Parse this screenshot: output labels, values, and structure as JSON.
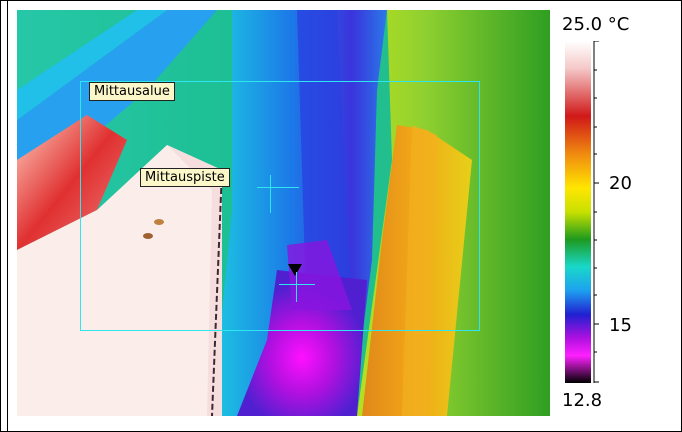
{
  "regions": {
    "area_label": "Mittausalue",
    "point_label": "Mittauspiste"
  },
  "scale": {
    "max_label": "25.0 °C",
    "min_label": "12.8",
    "tick_20": "20",
    "tick_15": "15",
    "max_value": 25.0,
    "min_value": 12.8,
    "unit": "°C",
    "palette": [
      "#ffffff",
      "#f7d0d0",
      "#d01818",
      "#f08a10",
      "#ffe600",
      "#c8e000",
      "#1e9a1e",
      "#18d8c8",
      "#1ea0f0",
      "#2020d0",
      "#b010e0",
      "#ff20ff",
      "#000000"
    ]
  }
}
